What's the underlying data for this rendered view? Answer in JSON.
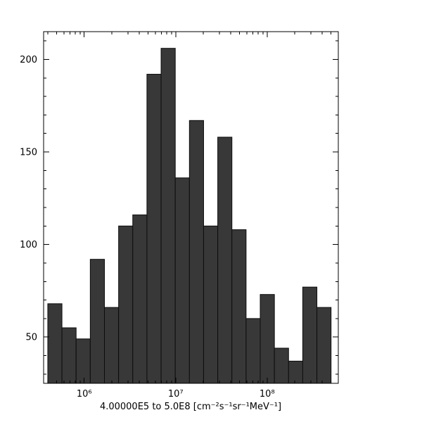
{
  "chart_data": {
    "type": "bar",
    "subtype": "histogram",
    "title": "",
    "xlabel": "4.00000E5 to 5.0E8 [cm⁻²s⁻¹sr⁻¹MeV⁻¹]",
    "ylabel": "",
    "x_scale": "log",
    "xlim": [
      360000,
      600000000
    ],
    "ylim": [
      25,
      215
    ],
    "bins": {
      "min": 400000,
      "max": 500000000,
      "count": 20
    },
    "values": [
      68,
      55,
      49,
      92,
      66,
      110,
      116,
      192,
      206,
      136,
      167,
      110,
      158,
      108,
      60,
      73,
      44,
      37,
      77,
      66
    ],
    "yticks_major": [
      50,
      100,
      150,
      200
    ],
    "ytick_minor_step": 10,
    "xticks_major": [
      {
        "value": 1000000,
        "label": "10⁶"
      },
      {
        "value": 10000000,
        "label": "10⁷"
      },
      {
        "value": 100000000,
        "label": "10⁸"
      }
    ],
    "grid": false,
    "legend": "none",
    "bar_fill": "#383838",
    "bar_stroke": "#0d0d0d",
    "axis_color": "#000000",
    "background": "#ffffff"
  }
}
